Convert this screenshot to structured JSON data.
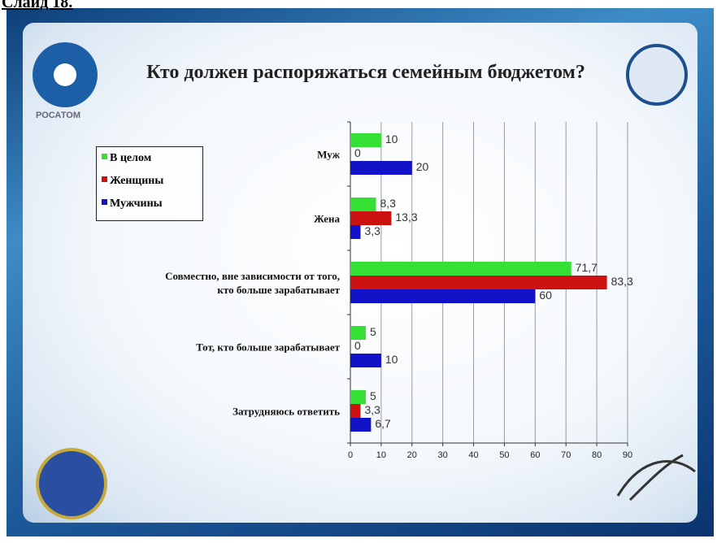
{
  "slide_label": "Слайд 18.",
  "logo_text": "РОСАТОМ",
  "chart_data": {
    "type": "barh",
    "title": "Кто должен распоряжаться семейным бюджетом?",
    "categories": [
      "Муж",
      "Жена",
      "Совместно, вне зависимости от того,\nкто больше зарабатывает",
      "Тот, кто больше зарабатывает",
      "Затрудняюсь ответить"
    ],
    "series": [
      {
        "name": "В целом",
        "color": "#33e033",
        "values": [
          10,
          8.3,
          71.7,
          5,
          5
        ],
        "value_labels": [
          "10",
          "8,3",
          "71,7",
          "5",
          "5"
        ]
      },
      {
        "name": "Женщины",
        "color": "#cc1111",
        "values": [
          0,
          13.3,
          83.3,
          0,
          3.3
        ],
        "value_labels": [
          "0",
          "13,3",
          "83,3",
          "0",
          "3,3"
        ]
      },
      {
        "name": "Мужчины",
        "color": "#1212c8",
        "values": [
          20,
          3.3,
          60,
          10,
          6.7
        ],
        "value_labels": [
          "20",
          "3,3",
          "60",
          "10",
          "6,7"
        ]
      }
    ],
    "xlim": [
      0,
      90
    ],
    "xticks": [
      0,
      10,
      20,
      30,
      40,
      50,
      60,
      70,
      80,
      90
    ],
    "grid": true,
    "legend": "left"
  }
}
